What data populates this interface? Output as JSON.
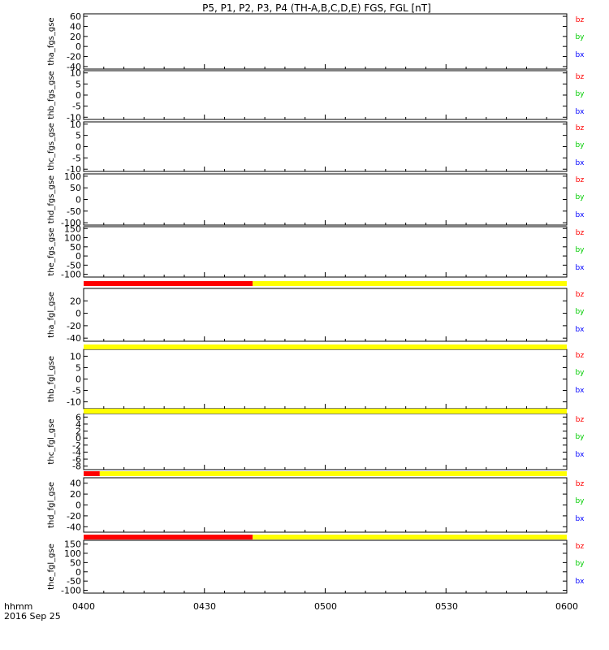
{
  "title": "P5, P1, P2, P3, P4 (TH-A,B,C,D,E) FGS, FGL [nT]",
  "xaxis": {
    "label": "hhmm",
    "date": "2016 Sep 25",
    "ticks": [
      "0400",
      "0430",
      "0500",
      "0530",
      "0600"
    ]
  },
  "legend": {
    "bz": "bz",
    "by": "by",
    "bx": "bx"
  },
  "colors": {
    "bz": "#ff0000",
    "by": "#00cc00",
    "bx": "#0000ff",
    "flag_red": "#ff0000",
    "flag_yellow": "#ffff00"
  },
  "chart_data": [
    {
      "type": "line",
      "ylabel": "tha_fgs_gse",
      "ylim": [
        -45,
        65
      ],
      "yticks": [
        -40,
        -20,
        0,
        20,
        40,
        60
      ],
      "series": [
        "bz",
        "by",
        "bx"
      ]
    },
    {
      "type": "line",
      "ylabel": "thb_fgs_gse",
      "ylim": [
        -11,
        11
      ],
      "yticks": [
        -10,
        -5,
        0,
        5,
        10
      ],
      "series": [
        "bz",
        "by",
        "bx"
      ]
    },
    {
      "type": "line",
      "ylabel": "thc_fgs_gse",
      "ylim": [
        -11,
        11
      ],
      "yticks": [
        -10,
        -5,
        0,
        5,
        10
      ],
      "series": [
        "bz",
        "by",
        "bx"
      ]
    },
    {
      "type": "line",
      "ylabel": "thd_fgs_gse",
      "ylim": [
        -110,
        110
      ],
      "yticks": [
        -100,
        -50,
        0,
        50,
        100
      ],
      "series": [
        "bz",
        "by",
        "bx"
      ]
    },
    {
      "type": "line",
      "ylabel": "the_fgs_gse",
      "ylim": [
        -115,
        160
      ],
      "yticks": [
        -100,
        -50,
        0,
        50,
        100,
        150
      ],
      "series": [
        "bz",
        "by",
        "bx"
      ],
      "flag_red_until": "0442"
    },
    {
      "type": "line",
      "ylabel": "tha_fgl_gse",
      "ylim": [
        -45,
        40
      ],
      "yticks": [
        -40,
        -20,
        0,
        20
      ],
      "series": [
        "bz",
        "by",
        "bx"
      ],
      "flag_red_until": null
    },
    {
      "type": "line",
      "ylabel": "thb_fgl_gse",
      "ylim": [
        -13,
        13
      ],
      "yticks": [
        -10,
        -5,
        0,
        5,
        10
      ],
      "series": [
        "bz",
        "by",
        "bx"
      ],
      "flag_red_until": null
    },
    {
      "type": "line",
      "ylabel": "thc_fgl_gse",
      "ylim": [
        -9,
        7
      ],
      "yticks": [
        -8,
        -6,
        -4,
        -2,
        0,
        2,
        4,
        6
      ],
      "series": [
        "bz",
        "by",
        "bx"
      ],
      "flag_red_until": "0404"
    },
    {
      "type": "line",
      "ylabel": "thd_fgl_gse",
      "ylim": [
        -50,
        50
      ],
      "yticks": [
        -40,
        -20,
        0,
        20,
        40
      ],
      "series": [
        "bz",
        "by",
        "bx"
      ],
      "flag_red_until": "0442"
    },
    {
      "type": "line",
      "ylabel": "the_fgl_gse",
      "ylim": [
        -115,
        170
      ],
      "yticks": [
        -100,
        -50,
        0,
        50,
        100,
        150
      ],
      "series": [
        "bz",
        "by",
        "bx"
      ]
    }
  ]
}
